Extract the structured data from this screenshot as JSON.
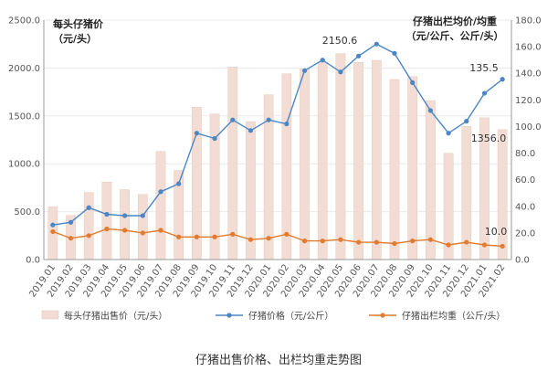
{
  "chart_data": {
    "type": "bar",
    "caption": "仔猪出售价格、出栏均重走势图",
    "left_axis_title_line1": "每头仔猪价",
    "left_axis_title_line2": "（元/头）",
    "right_axis_title_line1": "仔猪出栏均价/均重",
    "right_axis_title_line2": "（元/公斤、公斤/头）",
    "categories": [
      "2019.01",
      "2019.02",
      "2019.03",
      "2019.04",
      "2019.05",
      "2019.06",
      "2019.07",
      "2019.08",
      "2019.09",
      "2019.10",
      "2019.11",
      "2019.12",
      "2020.01",
      "2020.02",
      "2020.03",
      "2020.04",
      "2020.05",
      "2020.06",
      "2020.07",
      "2020.08",
      "2020.09",
      "2020.10",
      "2020.11",
      "2020.12",
      "2021.01",
      "2021.02"
    ],
    "left_axis": {
      "min": 0,
      "max": 2500,
      "ticks": [
        "0.0",
        "500.0",
        "1000.0",
        "1500.0",
        "2000.0",
        "2500.0"
      ]
    },
    "right_axis": {
      "min": 0,
      "max": 180,
      "ticks": [
        "0.0",
        "20.0",
        "40.0",
        "60.0",
        "80.0",
        "100.0",
        "120.0",
        "140.0",
        "160.0",
        "180.0"
      ]
    },
    "series": [
      {
        "name": "每头仔猪出售价（元/头）",
        "type": "bar",
        "axis": "left",
        "color": "#f3dcd3",
        "values": [
          550,
          460,
          700,
          810,
          730,
          680,
          1130,
          930,
          1590,
          1520,
          2010,
          1440,
          1720,
          1940,
          1990,
          2060,
          2150.6,
          2060,
          2080,
          1880,
          1910,
          1660,
          1110,
          1390,
          1480,
          1356.0
        ]
      },
      {
        "name": "仔猪价格（元/公斤）",
        "type": "line",
        "axis": "right",
        "color": "#4a86c5",
        "values": [
          26,
          28,
          39,
          34,
          33,
          33,
          51,
          57,
          95,
          91,
          105,
          97,
          105,
          102,
          142,
          150,
          141,
          153,
          162,
          155,
          133,
          112,
          95,
          104,
          125,
          135.5
        ]
      },
      {
        "name": "仔猪出栏均重（公斤/头）",
        "type": "line",
        "axis": "right",
        "color": "#e07b2f",
        "values": [
          21,
          16,
          18,
          23,
          22,
          20,
          22,
          17,
          17,
          17,
          19,
          15,
          16,
          19,
          14,
          14,
          15,
          13,
          13,
          12,
          14,
          15,
          11,
          13,
          11,
          10.0
        ]
      }
    ],
    "annotations": [
      "2150.6",
      "135.5",
      "1356.0",
      "10.0"
    ],
    "legend_position": "bottom",
    "grid": true
  }
}
